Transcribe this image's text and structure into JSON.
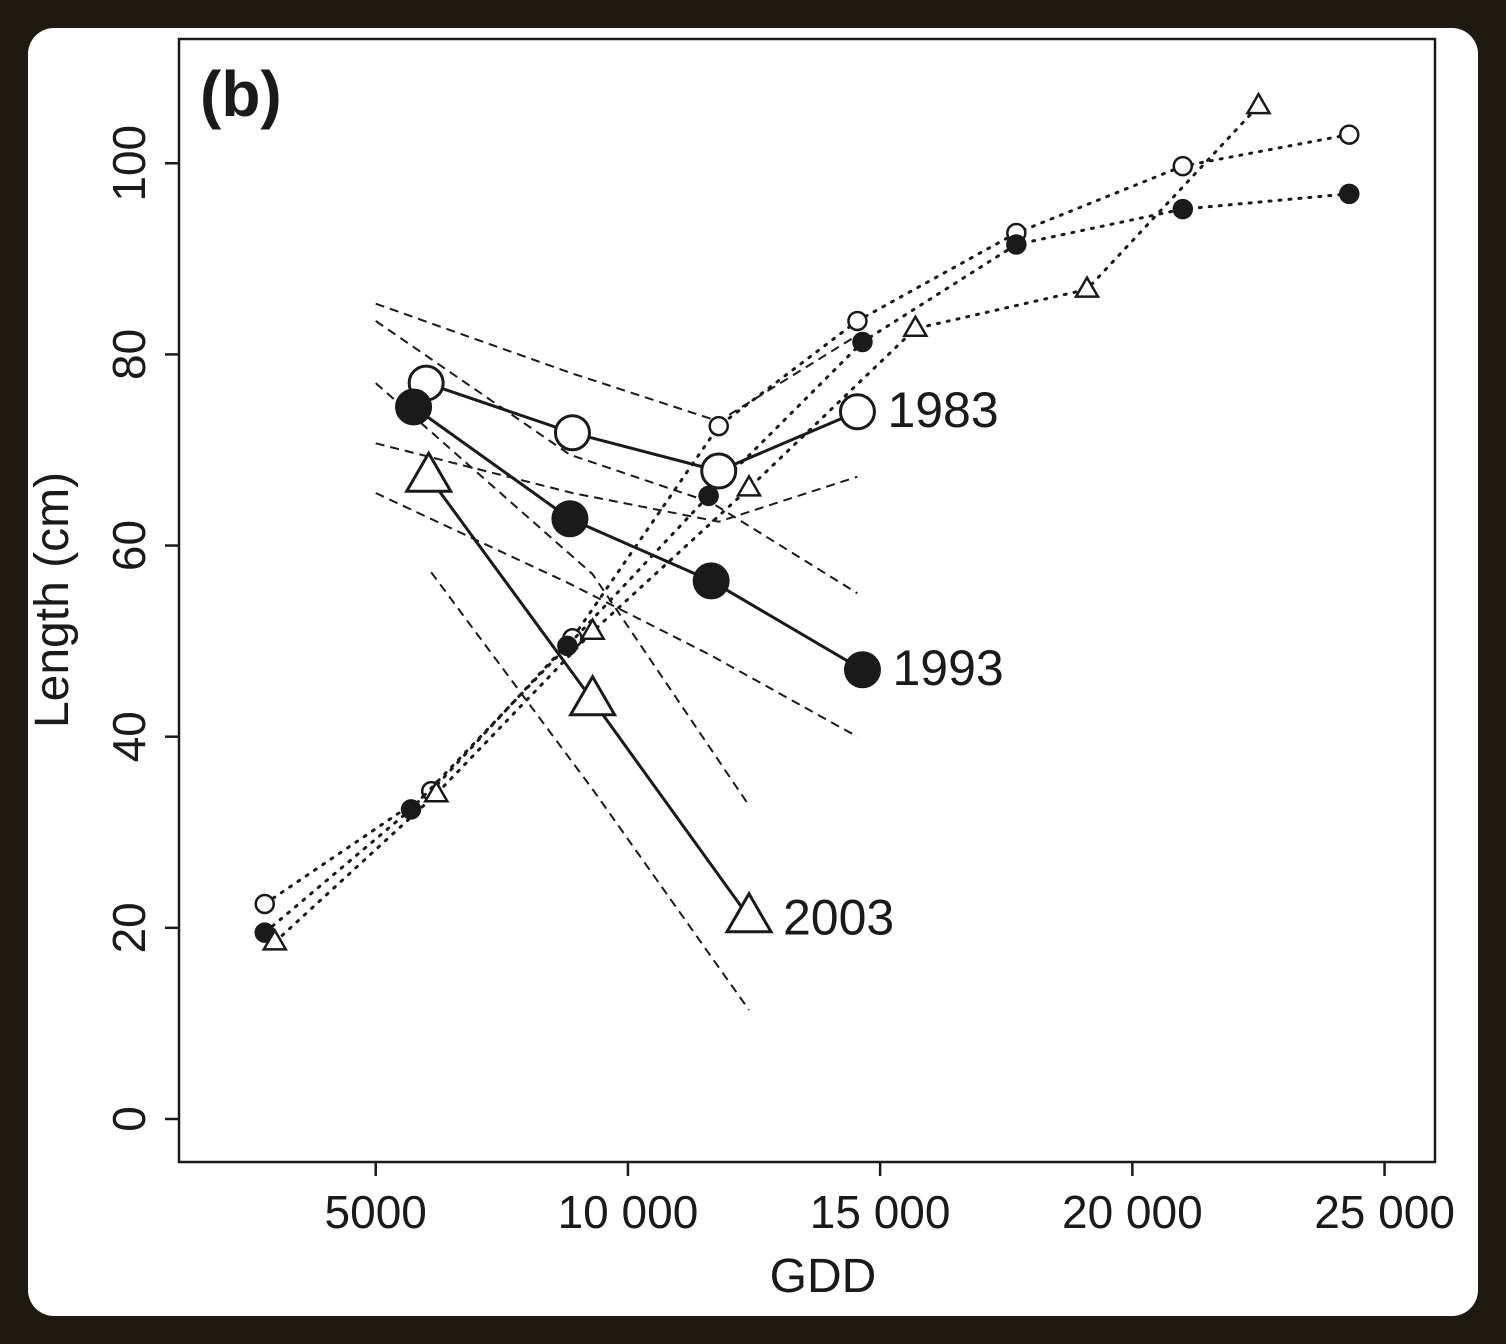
{
  "chart_data": {
    "type": "line",
    "panel_label": "(b)",
    "xlabel": "GDD",
    "ylabel": "Length (cm)",
    "xlim": [
      1100,
      26000
    ],
    "ylim": [
      -4.5,
      113
    ],
    "x_ticks": [
      5000,
      10000,
      15000,
      20000,
      25000
    ],
    "x_tick_labels": [
      "5000",
      "10 000",
      "15 000",
      "20 000",
      "25 000"
    ],
    "y_ticks": [
      0,
      20,
      40,
      60,
      80,
      100
    ],
    "y_tick_labels": [
      "0",
      "20",
      "40",
      "60",
      "80",
      "100"
    ],
    "grid": false,
    "series": [
      {
        "name": "1983",
        "marker": "open-circle",
        "growth": [
          [
            2800,
            22.5
          ],
          [
            6100,
            34.3
          ],
          [
            8900,
            50.3
          ],
          [
            11800,
            72.5
          ],
          [
            14550,
            83.5
          ],
          [
            17700,
            92.7
          ],
          [
            21000,
            99.7
          ],
          [
            24300,
            103
          ]
        ],
        "fit": [
          [
            6000,
            77
          ],
          [
            8900,
            71.8
          ],
          [
            11800,
            67.8
          ],
          [
            14550,
            74
          ]
        ],
        "ci_upper": [
          [
            5000,
            85.3
          ],
          [
            8900,
            78
          ],
          [
            11800,
            73
          ],
          [
            14550,
            82
          ]
        ],
        "ci_lower": [
          [
            5000,
            70.7
          ],
          [
            8900,
            65.5
          ],
          [
            11800,
            62.5
          ],
          [
            14550,
            67.2
          ]
        ]
      },
      {
        "name": "1993",
        "marker": "filled-circle",
        "growth": [
          [
            2800,
            19.5
          ],
          [
            5700,
            32.4
          ],
          [
            8800,
            49.5
          ],
          [
            11600,
            65.2
          ],
          [
            14650,
            81.3
          ],
          [
            17700,
            91.5
          ],
          [
            21000,
            95.2
          ],
          [
            24300,
            96.8
          ]
        ],
        "fit": [
          [
            5750,
            74.5
          ],
          [
            8850,
            62.8
          ],
          [
            11650,
            56.3
          ],
          [
            14650,
            47
          ]
        ],
        "ci_upper": [
          [
            5000,
            83.5
          ],
          [
            8850,
            69.5
          ],
          [
            11650,
            64.5
          ],
          [
            14550,
            55
          ]
        ],
        "ci_lower": [
          [
            5000,
            65.5
          ],
          [
            8850,
            56
          ],
          [
            11650,
            48.5
          ],
          [
            14550,
            40
          ]
        ]
      },
      {
        "name": "2003",
        "marker": "open-triangle",
        "growth": [
          [
            3000,
            18.5
          ],
          [
            6200,
            34
          ],
          [
            9300,
            51
          ],
          [
            12400,
            66
          ],
          [
            15700,
            82.7
          ],
          [
            19100,
            86.8
          ],
          [
            22500,
            106
          ]
        ],
        "fit": [
          [
            6050,
            67.2
          ],
          [
            9300,
            43.8
          ],
          [
            12400,
            21.1
          ]
        ],
        "ci_upper": [
          [
            5000,
            77
          ],
          [
            9300,
            57
          ],
          [
            12400,
            32.8
          ]
        ],
        "ci_lower": [
          [
            6100,
            57.2
          ],
          [
            9300,
            34.5
          ],
          [
            12400,
            11.4
          ]
        ]
      }
    ]
  }
}
